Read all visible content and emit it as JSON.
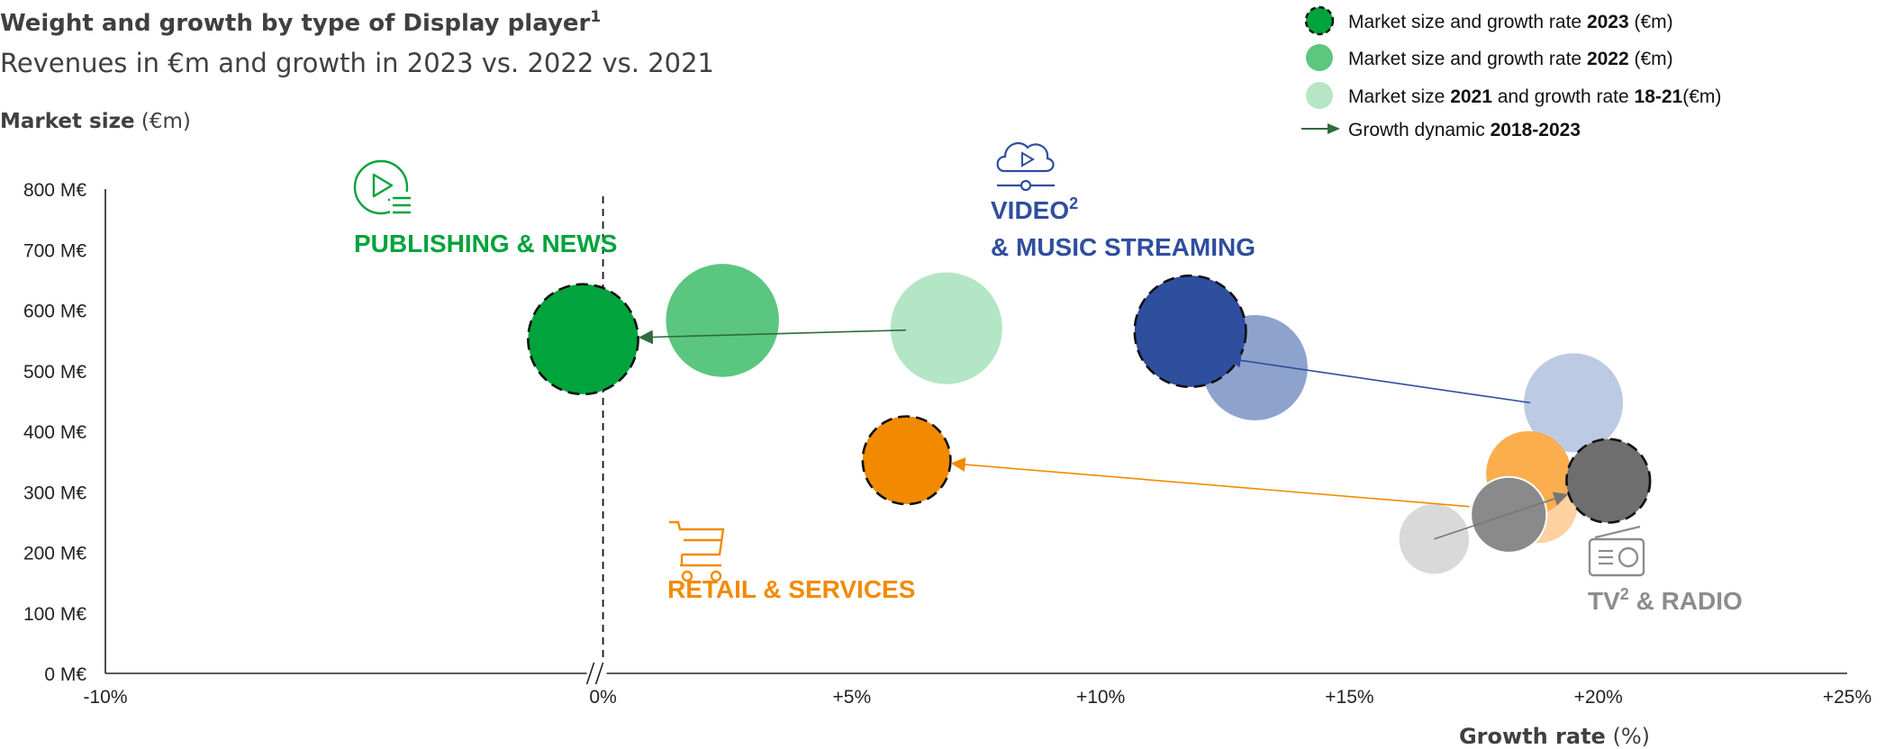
{
  "header": {
    "title": "Weight and growth by type of Display player",
    "title_sup": "1",
    "subtitle": "Revenues in €m and growth in 2023 vs. 2022 vs. 2021"
  },
  "legend": {
    "items": [
      {
        "label_pre": "Market size and growth rate ",
        "label_bold": "2023",
        "label_post": " (€m)",
        "style": "dashed-green"
      },
      {
        "label_pre": "Market size and growth rate ",
        "label_bold": "2022",
        "label_post": " (€m)",
        "style": "mid-green"
      },
      {
        "label_pre": "Market size ",
        "label_bold": "2021",
        "label_mid": " and growth rate ",
        "label_bold2": "18-21",
        "label_post": "(€m)",
        "style": "light-green"
      },
      {
        "label_pre": "Growth dynamic ",
        "label_bold": "2018-2023",
        "label_post": "",
        "style": "arrow"
      }
    ]
  },
  "categories": {
    "publishing": {
      "label": "PUBLISHING & NEWS",
      "color": "#00A33C"
    },
    "video": {
      "label_line1": "VIDEO",
      "label_sup": "2",
      "label_line2": "& MUSIC STREAMING",
      "color": "#2E4E9E"
    },
    "retail": {
      "label": "RETAIL & SERVICES",
      "color": "#F28A00"
    },
    "tv": {
      "label_pre": "TV",
      "label_sup": "2",
      "label_post": " & RADIO",
      "color": "#8C8C8C"
    }
  },
  "chart_data": {
    "type": "scatter",
    "ylabel": "Market size",
    "ylabel_unit": " (€m)",
    "xlabel": "Growth rate",
    "xlabel_unit": " (%)",
    "xlim": [
      -10,
      25
    ],
    "ylim": [
      0,
      800
    ],
    "x_ticks": [
      -10,
      0,
      5,
      10,
      15,
      20,
      25
    ],
    "x_tick_labels": [
      "-10%",
      "0%",
      "+5%",
      "+10%",
      "+15%",
      "+20%",
      "+25%"
    ],
    "y_ticks": [
      0,
      100,
      200,
      300,
      400,
      500,
      600,
      700,
      800
    ],
    "y_tick_labels": [
      "0 M€",
      "100 M€",
      "200 M€",
      "300 M€",
      "400 M€",
      "500 M€",
      "600 M€",
      "700 M€",
      "800 M€"
    ],
    "axis_break_at": 0,
    "series": [
      {
        "key": "publishing",
        "points": [
          {
            "year": "2021",
            "x": 6.9,
            "y": 570,
            "size": 570
          },
          {
            "year": "2022",
            "x": 2.4,
            "y": 583,
            "size": 583
          },
          {
            "year": "2023",
            "x": -0.4,
            "y": 552,
            "size": 552
          }
        ]
      },
      {
        "key": "video",
        "points": [
          {
            "year": "2021",
            "x": 19.5,
            "y": 447,
            "size": 447
          },
          {
            "year": "2022",
            "x": 13.1,
            "y": 505,
            "size": 505
          },
          {
            "year": "2023",
            "x": 11.8,
            "y": 565,
            "size": 565
          }
        ]
      },
      {
        "key": "retail",
        "points": [
          {
            "year": "2021",
            "x": 18.8,
            "y": 280,
            "size": 280
          },
          {
            "year": "2022",
            "x": 18.6,
            "y": 330,
            "size": 330
          },
          {
            "year": "2023",
            "x": 6.1,
            "y": 352,
            "size": 352
          }
        ]
      },
      {
        "key": "tv",
        "points": [
          {
            "year": "2021",
            "x": 16.7,
            "y": 222,
            "size": 222
          },
          {
            "year": "2022",
            "x": 18.2,
            "y": 262,
            "size": 262
          },
          {
            "year": "2023",
            "x": 20.2,
            "y": 318,
            "size": 318
          }
        ]
      }
    ]
  }
}
